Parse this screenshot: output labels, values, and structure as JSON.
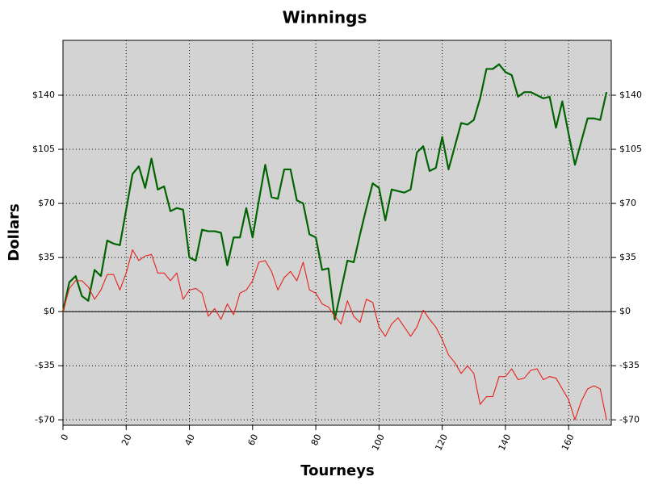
{
  "chart_data": {
    "type": "line",
    "title": "Winnings",
    "x_label": "Tourneys",
    "y_label": "Dollars",
    "x": [
      0,
      2,
      4,
      6,
      8,
      10,
      12,
      14,
      16,
      18,
      20,
      22,
      24,
      26,
      28,
      30,
      32,
      34,
      36,
      38,
      40,
      42,
      44,
      46,
      48,
      50,
      52,
      54,
      56,
      58,
      60,
      62,
      64,
      66,
      68,
      70,
      72,
      74,
      76,
      78,
      80,
      82,
      84,
      86,
      88,
      90,
      92,
      94,
      96,
      98,
      100,
      102,
      104,
      106,
      108,
      110,
      112,
      114,
      116,
      118,
      120,
      122,
      124,
      126,
      128,
      130,
      132,
      134,
      136,
      138,
      140,
      142,
      144,
      146,
      148,
      150,
      152,
      154,
      156,
      158,
      160,
      162,
      164,
      166,
      168,
      170,
      172
    ],
    "series": [
      {
        "color": "#006400",
        "width": 2.2,
        "values": [
          0,
          19,
          23,
          10,
          7,
          27,
          23,
          46,
          44,
          43,
          66,
          89,
          94,
          80,
          99,
          79,
          81,
          65,
          67,
          66,
          35,
          33,
          53,
          52,
          52,
          51,
          30,
          48,
          48,
          67,
          48,
          72,
          95,
          74,
          73,
          92,
          92,
          72,
          70,
          50,
          48,
          27,
          28,
          -5,
          14,
          33,
          32,
          50,
          67,
          83,
          80,
          59,
          79,
          78,
          77,
          79,
          103,
          107,
          91,
          93,
          113,
          92,
          107,
          122,
          121,
          124,
          138,
          157,
          157,
          160,
          155,
          153,
          139,
          142,
          142,
          140,
          138,
          139,
          119,
          136,
          115,
          95,
          110,
          125,
          125,
          124,
          142
        ]
      },
      {
        "color": "#e8201a",
        "width": 1.1,
        "values": [
          0,
          15,
          20,
          20,
          16,
          8,
          14,
          24,
          24,
          14,
          25,
          40,
          33,
          36,
          37,
          25,
          25,
          20,
          25,
          8,
          14,
          15,
          12,
          -3,
          2,
          -5,
          5,
          -2,
          12,
          14,
          20,
          32,
          33,
          26,
          14,
          22,
          26,
          20,
          32,
          14,
          12,
          5,
          3,
          -3,
          -8,
          7,
          -3,
          -7,
          8,
          6,
          -10,
          -16,
          -8,
          -4,
          -10,
          -16,
          -10,
          1,
          -5,
          -10,
          -18,
          -28,
          -33,
          -40,
          -35,
          -40,
          -60,
          -55,
          -55,
          -42,
          -42,
          -37,
          -44,
          -43,
          -38,
          -37,
          -44,
          -42,
          -43,
          -50,
          -57,
          -70,
          -58,
          -50,
          -48,
          -50,
          -70
        ]
      }
    ],
    "xlim": [
      0,
      173.5
    ],
    "ylim": [
      -73.5,
      175.5
    ],
    "xticks": [
      0,
      20,
      40,
      60,
      80,
      100,
      120,
      140,
      160
    ],
    "yticks": [
      {
        "value": -70,
        "label": "-$70"
      },
      {
        "value": -35,
        "label": "-$35"
      },
      {
        "value": 0,
        "label": "$0"
      },
      {
        "value": 35,
        "label": "$35"
      },
      {
        "value": 70,
        "label": "$70"
      },
      {
        "value": 105,
        "label": "$105"
      },
      {
        "value": 140,
        "label": "$140"
      }
    ],
    "grid": true,
    "zero_line": true
  }
}
